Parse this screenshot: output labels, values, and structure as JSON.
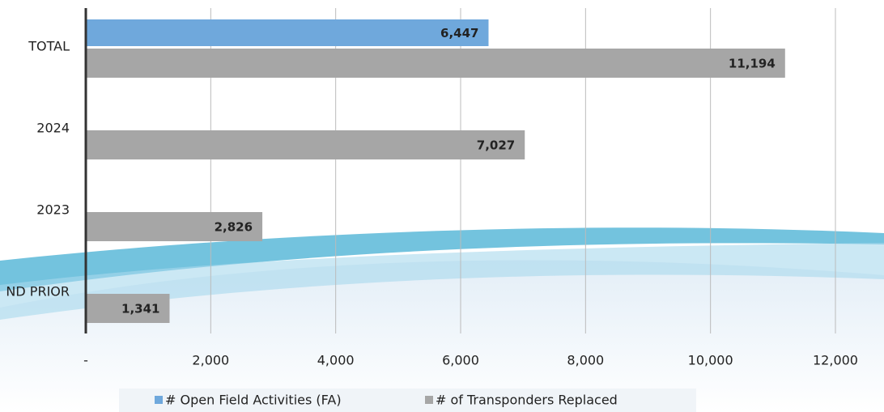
{
  "chart_data": {
    "type": "bar",
    "orientation": "horizontal",
    "categories": [
      "TOTAL",
      "2024",
      "2023",
      "ND PRIOR"
    ],
    "series": [
      {
        "name": "# Open Field Activities (FA)",
        "color": "#6fa8dc",
        "values": [
          6447,
          null,
          null,
          null
        ],
        "value_labels": [
          "6,447",
          null,
          null,
          null
        ]
      },
      {
        "name": "# of Transponders Replaced",
        "color": "#a6a6a6",
        "values": [
          11194,
          7027,
          2826,
          1341
        ],
        "value_labels": [
          "11,194",
          "7,027",
          "2,826",
          "1,341"
        ]
      }
    ],
    "xlim": [
      0,
      12000
    ],
    "xticks": [
      {
        "value": 0,
        "label": "-"
      },
      {
        "value": 2000,
        "label": "2,000"
      },
      {
        "value": 4000,
        "label": "4,000"
      },
      {
        "value": 6000,
        "label": "6,000"
      },
      {
        "value": 8000,
        "label": "8,000"
      },
      {
        "value": 10000,
        "label": "10,000"
      },
      {
        "value": 12000,
        "label": "12,000"
      }
    ],
    "grid": true,
    "legend": "bottom"
  }
}
